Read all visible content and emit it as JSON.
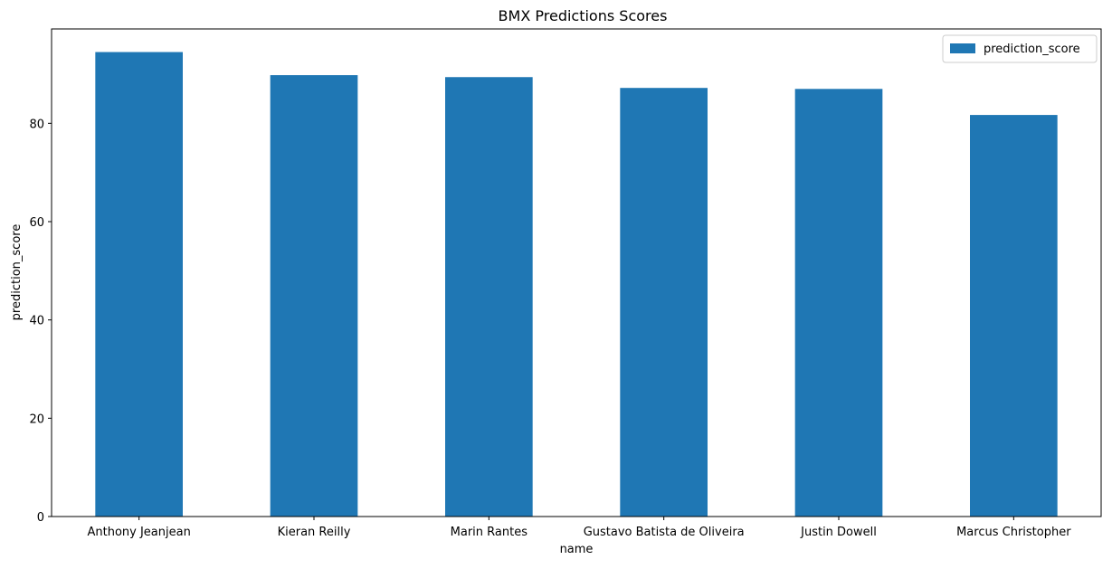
{
  "chart_data": {
    "type": "bar",
    "title": "BMX Predictions Scores",
    "xlabel": "name",
    "ylabel": "prediction_score",
    "categories": [
      "Anthony Jeanjean",
      "Kieran Reilly",
      "Marin Rantes",
      "Gustavo Batista de Oliveira",
      "Justin Dowell",
      "Marcus Christopher"
    ],
    "series": [
      {
        "name": "prediction_score",
        "color": "#1f77b4",
        "values": [
          94.5,
          89.8,
          89.4,
          87.2,
          87.0,
          81.7
        ]
      }
    ],
    "ylim": [
      0,
      99.2
    ],
    "yticks": [
      0,
      20,
      40,
      60,
      80
    ],
    "grid": false,
    "legend_position": "top-right"
  }
}
